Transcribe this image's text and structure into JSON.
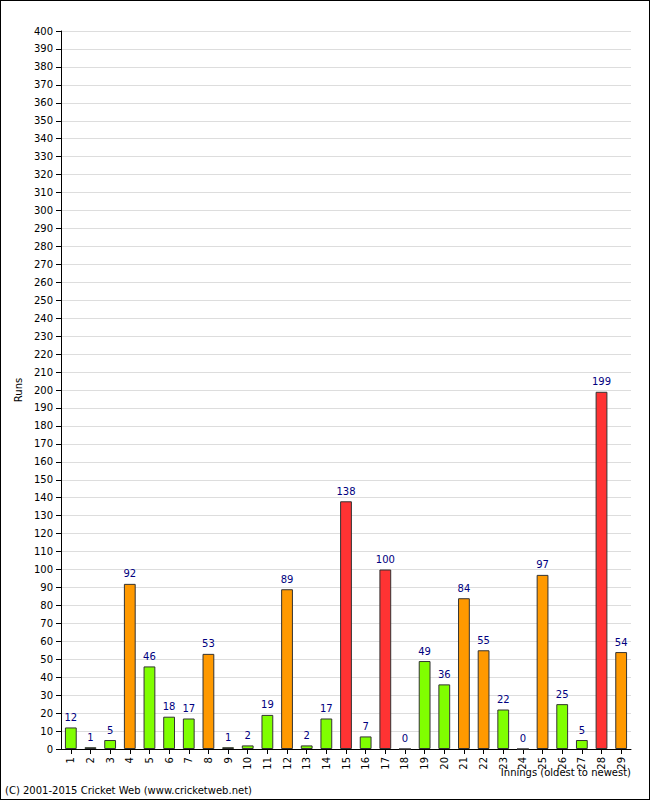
{
  "chart_data": {
    "type": "bar",
    "x_label": "Innings (oldest to newest)",
    "y_label": "Runs",
    "annotations": [
      "(C) 2001-2015 Cricket Web (www.cricketweb.net)"
    ],
    "categories": [
      "1",
      "2",
      "3",
      "4",
      "5",
      "6",
      "7",
      "8",
      "9",
      "10",
      "11",
      "12",
      "13",
      "14",
      "15",
      "16",
      "17",
      "18",
      "19",
      "20",
      "21",
      "22",
      "23",
      "24",
      "25",
      "26",
      "27",
      "28",
      "29"
    ],
    "values": [
      12,
      1,
      5,
      92,
      46,
      18,
      17,
      53,
      1,
      2,
      19,
      89,
      2,
      17,
      138,
      7,
      100,
      0,
      49,
      36,
      84,
      55,
      22,
      0,
      97,
      25,
      5,
      199,
      54
    ],
    "colors": [
      "#80ff00",
      "#80ff00",
      "#80ff00",
      "#ff9900",
      "#80ff00",
      "#80ff00",
      "#80ff00",
      "#ff9900",
      "#80ff00",
      "#80ff00",
      "#80ff00",
      "#ff9900",
      "#80ff00",
      "#80ff00",
      "#ff3333",
      "#80ff00",
      "#ff3333",
      "#80ff00",
      "#80ff00",
      "#80ff00",
      "#ff9900",
      "#ff9900",
      "#80ff00",
      "#80ff00",
      "#ff9900",
      "#80ff00",
      "#80ff00",
      "#ff3333",
      "#ff9900"
    ],
    "ylim": [
      0,
      400
    ],
    "yticks": [
      0,
      10,
      20,
      30,
      40,
      50,
      60,
      70,
      80,
      90,
      100,
      110,
      120,
      130,
      140,
      150,
      160,
      170,
      180,
      190,
      200,
      210,
      220,
      230,
      240,
      250,
      260,
      270,
      280,
      290,
      300,
      310,
      320,
      330,
      340,
      350,
      360,
      370,
      380,
      390,
      400
    ],
    "grid": true,
    "data_labels": true
  }
}
